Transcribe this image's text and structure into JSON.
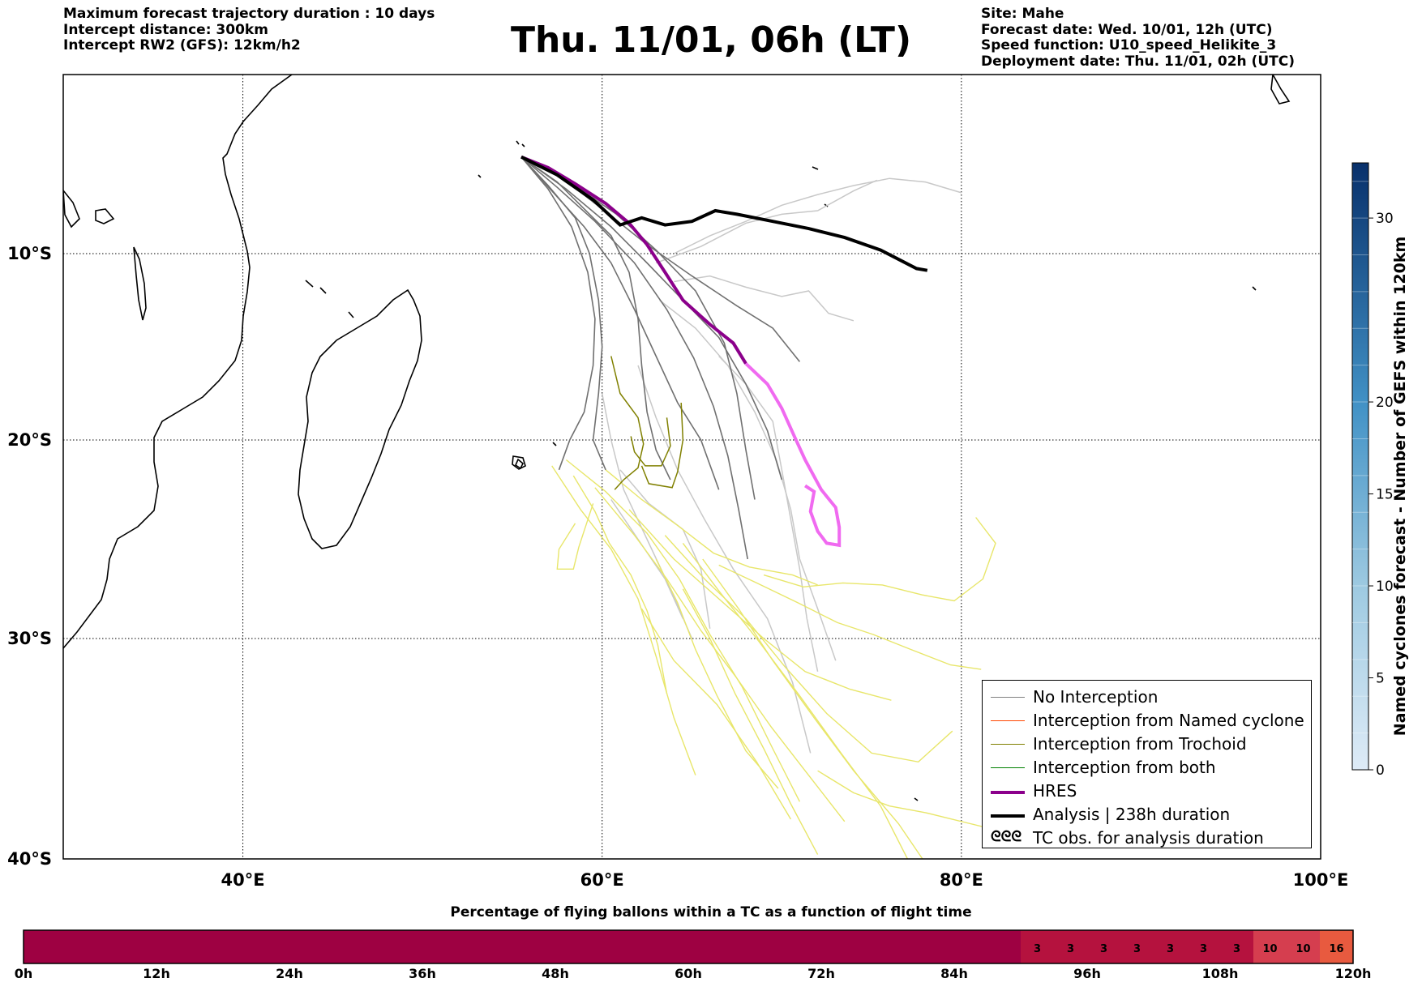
{
  "header": {
    "left": [
      "Maximum forecast trajectory duration : 10 days",
      "Intercept distance: 300km",
      "Intercept RW2 (GFS):  12km/h2"
    ],
    "title": "Thu. 11/01, 06h (LT)",
    "right": [
      "Site: Mahe",
      "Forecast date: Wed. 10/01, 12h (UTC)",
      "Speed function: U10_speed_Helikite_3",
      "Deployment date: Thu. 11/01, 02h (UTC)"
    ]
  },
  "map": {
    "lon_range": [
      30,
      100
    ],
    "lat_range": [
      -40,
      -0.5
    ],
    "lon_ticks": [
      {
        "value": 40,
        "label": "40°E"
      },
      {
        "value": 60,
        "label": "60°E"
      },
      {
        "value": 80,
        "label": "80°E"
      },
      {
        "value": 100,
        "label": "100°E"
      }
    ],
    "lat_ticks": [
      {
        "value": -10,
        "label": "10°S"
      },
      {
        "value": -20,
        "label": "20°S"
      },
      {
        "value": -30,
        "label": "30°S"
      },
      {
        "value": -40,
        "label": "40°S"
      }
    ],
    "launch_site": "Mahe",
    "launch_point": [
      55.5,
      -4.6
    ]
  },
  "legend": [
    {
      "label": "No Interception",
      "color": "#808080",
      "style": "thin"
    },
    {
      "label": "Interception from Named cyclone",
      "color": "#ff4500",
      "style": "thin"
    },
    {
      "label": "Interception from Trochoid",
      "color": "#808000",
      "style": "thin"
    },
    {
      "label": "Interception from both",
      "color": "#008000",
      "style": "thin"
    },
    {
      "label": "HRES",
      "color": "#8b008b",
      "style": "thick"
    },
    {
      "label": "Analysis | 238h duration",
      "color": "#000000",
      "style": "thick"
    },
    {
      "label": "TC obs. for analysis duration",
      "color": "#000000",
      "style": "symbol",
      "symbol": "ᘓᘓᘓ"
    }
  ],
  "colorbar": {
    "title": "Named cyclones forecast - Number of GEFS within 120km",
    "min": 0,
    "max": 33,
    "ticks": [
      0,
      5,
      10,
      15,
      20,
      30
    ]
  },
  "timeline": {
    "title": "Percentage of flying ballons within a TC as a function of flight time",
    "tick_labels": [
      "0h",
      "12h",
      "24h",
      "36h",
      "48h",
      "60h",
      "72h",
      "84h",
      "96h",
      "108h",
      "120h"
    ],
    "cells": [
      {
        "start_h": 0,
        "end_h": 90,
        "value": null
      },
      {
        "start_h": 90,
        "end_h": 93,
        "value": 3
      },
      {
        "start_h": 93,
        "end_h": 96,
        "value": 3
      },
      {
        "start_h": 96,
        "end_h": 99,
        "value": 3
      },
      {
        "start_h": 99,
        "end_h": 102,
        "value": 3
      },
      {
        "start_h": 102,
        "end_h": 105,
        "value": 3
      },
      {
        "start_h": 105,
        "end_h": 108,
        "value": 3
      },
      {
        "start_h": 108,
        "end_h": 111,
        "value": 3
      },
      {
        "start_h": 111,
        "end_h": 114,
        "value": 10
      },
      {
        "start_h": 114,
        "end_h": 117,
        "value": 10
      },
      {
        "start_h": 117,
        "end_h": 120,
        "value": 16
      }
    ]
  },
  "tracks": {
    "hres": [
      [
        55.5,
        -4.6
      ],
      [
        57,
        -5.2
      ],
      [
        58.5,
        -6.1
      ],
      [
        60.2,
        -7.2
      ],
      [
        61.5,
        -8.3
      ],
      [
        62.5,
        -9.5
      ],
      [
        63.5,
        -11
      ],
      [
        64.5,
        -12.5
      ],
      [
        66,
        -13.8
      ],
      [
        67.3,
        -14.8
      ],
      [
        68,
        -15.9
      ],
      [
        69.2,
        -17
      ],
      [
        70,
        -18.3
      ],
      [
        70.7,
        -19.8
      ],
      [
        71.3,
        -21
      ],
      [
        72.2,
        -22.5
      ],
      [
        73,
        -23.4
      ],
      [
        73.2,
        -24.4
      ],
      [
        73.2,
        -25.3
      ],
      [
        72.5,
        -25.2
      ],
      [
        72,
        -24.6
      ],
      [
        71.6,
        -23.6
      ],
      [
        71.8,
        -22.6
      ],
      [
        71.3,
        -22.3
      ]
    ],
    "analysis": [
      [
        55.5,
        -4.6
      ],
      [
        57.5,
        -5.6
      ],
      [
        59.5,
        -7
      ],
      [
        61,
        -8.4
      ],
      [
        62.2,
        -8
      ],
      [
        63.5,
        -8.4
      ],
      [
        65,
        -8.2
      ],
      [
        66.3,
        -7.6
      ],
      [
        67.5,
        -7.8
      ],
      [
        69.5,
        -8.2
      ],
      [
        71.5,
        -8.6
      ],
      [
        73.5,
        -9.1
      ],
      [
        75.5,
        -9.8
      ],
      [
        77.5,
        -10.8
      ],
      [
        78.1,
        -10.9
      ]
    ],
    "gray": [
      [
        [
          55.5,
          -4.6
        ],
        [
          57.5,
          -6
        ],
        [
          59,
          -7.5
        ],
        [
          60.5,
          -9
        ],
        [
          61.5,
          -11
        ],
        [
          62,
          -13.5
        ],
        [
          62.2,
          -16
        ],
        [
          62.5,
          -18.5
        ],
        [
          63,
          -20.5
        ],
        [
          63.8,
          -22
        ]
      ],
      [
        [
          55.5,
          -4.6
        ],
        [
          57,
          -6.2
        ],
        [
          58.5,
          -8
        ],
        [
          59.3,
          -10
        ],
        [
          59.8,
          -12.5
        ],
        [
          60,
          -15
        ],
        [
          59.8,
          -17.5
        ],
        [
          59.5,
          -20
        ],
        [
          60.2,
          -21.5
        ]
      ],
      [
        [
          55.5,
          -4.6
        ],
        [
          57.2,
          -6.5
        ],
        [
          59,
          -8.5
        ],
        [
          60.5,
          -10.5
        ],
        [
          61.8,
          -13
        ],
        [
          63,
          -15.5
        ],
        [
          64.2,
          -18
        ],
        [
          65.5,
          -20
        ],
        [
          66.5,
          -22.5
        ]
      ],
      [
        [
          55.5,
          -4.6
        ],
        [
          58,
          -6.4
        ],
        [
          60.5,
          -8.5
        ],
        [
          62.5,
          -10.5
        ],
        [
          64.5,
          -12.5
        ],
        [
          66.5,
          -14.5
        ],
        [
          68,
          -17
        ],
        [
          69.2,
          -19.5
        ],
        [
          70,
          -22
        ]
      ],
      [
        [
          55.5,
          -4.6
        ],
        [
          57.8,
          -5.8
        ],
        [
          60,
          -7.5
        ],
        [
          62.5,
          -9.5
        ],
        [
          65,
          -11.2
        ],
        [
          67.5,
          -12.8
        ],
        [
          69.5,
          -14
        ],
        [
          71,
          -15.8
        ]
      ],
      [
        [
          55.5,
          -4.6
        ],
        [
          58.2,
          -6
        ],
        [
          60.8,
          -7.8
        ],
        [
          63,
          -9.8
        ],
        [
          65.2,
          -12
        ],
        [
          66.8,
          -14.8
        ],
        [
          67.5,
          -17.5
        ],
        [
          68,
          -20.5
        ],
        [
          68.5,
          -23
        ]
      ],
      [
        [
          55.5,
          -4.6
        ],
        [
          57,
          -6.4
        ],
        [
          58.3,
          -8.5
        ],
        [
          59.2,
          -11
        ],
        [
          59.6,
          -13.5
        ],
        [
          59.5,
          -16
        ],
        [
          59,
          -18.5
        ],
        [
          58.2,
          -20
        ],
        [
          57.6,
          -21.5
        ]
      ],
      [
        [
          55.5,
          -4.6
        ],
        [
          57.5,
          -6.3
        ],
        [
          59.6,
          -8.2
        ],
        [
          61.8,
          -10.5
        ],
        [
          63.6,
          -13
        ],
        [
          65.1,
          -15.6
        ],
        [
          66.2,
          -18.2
        ],
        [
          67,
          -20.8
        ],
        [
          67.6,
          -23.5
        ],
        [
          68.1,
          -26
        ]
      ]
    ],
    "lightgray": [
      [
        [
          64,
          -10
        ],
        [
          66,
          -9
        ],
        [
          68,
          -8.2
        ],
        [
          70,
          -7.3
        ],
        [
          72,
          -6.7
        ],
        [
          74,
          -6.2
        ],
        [
          76,
          -5.8
        ],
        [
          78,
          -6
        ],
        [
          80,
          -6.6
        ]
      ],
      [
        [
          63,
          -10.5
        ],
        [
          65.5,
          -9.6
        ],
        [
          68,
          -8.3
        ],
        [
          70,
          -7.8
        ],
        [
          72,
          -7.6
        ],
        [
          74,
          -6.5
        ],
        [
          75.3,
          -5.9
        ]
      ],
      [
        [
          64,
          -11.5
        ],
        [
          66,
          -11.2
        ],
        [
          68,
          -11.8
        ],
        [
          70,
          -12.3
        ],
        [
          71.5,
          -12
        ],
        [
          72.6,
          -13.2
        ],
        [
          74,
          -13.6
        ]
      ],
      [
        [
          63.2,
          -12.5
        ],
        [
          65.2,
          -14
        ],
        [
          67,
          -16
        ],
        [
          68.5,
          -18.5
        ],
        [
          69.7,
          -21
        ],
        [
          70.5,
          -23.5
        ],
        [
          71,
          -26
        ],
        [
          72,
          -28.5
        ],
        [
          73,
          -31
        ]
      ],
      [
        [
          62,
          -16
        ],
        [
          63,
          -18.8
        ],
        [
          64.2,
          -21.5
        ],
        [
          65.7,
          -24
        ],
        [
          67.3,
          -26.5
        ],
        [
          69.2,
          -29
        ],
        [
          70.6,
          -32
        ],
        [
          71.6,
          -35.2
        ]
      ],
      [
        [
          60,
          -17.5
        ],
        [
          60.5,
          -20
        ],
        [
          61.2,
          -22.5
        ],
        [
          62.5,
          -25
        ],
        [
          63.8,
          -27.5
        ],
        [
          65,
          -30
        ]
      ],
      [
        [
          60.5,
          -23
        ],
        [
          62,
          -25
        ],
        [
          63.5,
          -27
        ],
        [
          64.5,
          -29
        ]
      ],
      [
        [
          66.5,
          -15.5
        ],
        [
          68,
          -17
        ],
        [
          69.5,
          -19
        ],
        [
          70,
          -21.5
        ],
        [
          70.5,
          -24
        ],
        [
          71,
          -26.5
        ],
        [
          71.4,
          -29
        ],
        [
          72,
          -31.5
        ]
      ],
      [
        [
          61,
          -21.5
        ],
        [
          62.6,
          -23.2
        ],
        [
          64.5,
          -24.5
        ],
        [
          65.5,
          -26.5
        ],
        [
          66,
          -29.5
        ]
      ]
    ],
    "yellow": [
      [
        [
          57.2,
          -21.3
        ],
        [
          58.8,
          -23.5
        ],
        [
          60.5,
          -25.5
        ],
        [
          62,
          -28
        ],
        [
          63,
          -30.8
        ],
        [
          64,
          -33.6
        ],
        [
          65.2,
          -36.2
        ]
      ],
      [
        [
          58,
          -21
        ],
        [
          60.2,
          -22.6
        ],
        [
          62.5,
          -24.7
        ],
        [
          64.3,
          -27
        ],
        [
          66,
          -29.8
        ],
        [
          67.8,
          -32.2
        ],
        [
          69.5,
          -35
        ],
        [
          71,
          -37.4
        ]
      ],
      [
        [
          59.6,
          -22.4
        ],
        [
          61.8,
          -24.8
        ],
        [
          63.6,
          -27
        ],
        [
          65.5,
          -29.6
        ],
        [
          67.5,
          -31.8
        ],
        [
          69.4,
          -34
        ],
        [
          71.3,
          -36
        ],
        [
          73.5,
          -38.3
        ]
      ],
      [
        [
          61.5,
          -23.5
        ],
        [
          64,
          -26
        ],
        [
          66.5,
          -28
        ],
        [
          69,
          -30
        ],
        [
          71.3,
          -31.5
        ],
        [
          73.8,
          -32.3
        ],
        [
          76.1,
          -32.8
        ]
      ],
      [
        [
          63.5,
          -24.8
        ],
        [
          65.7,
          -27
        ],
        [
          68,
          -29
        ],
        [
          70.2,
          -31.3
        ],
        [
          72.5,
          -33.4
        ],
        [
          75,
          -35.2
        ],
        [
          77.6,
          -35.6
        ],
        [
          79.5,
          -34.2
        ]
      ],
      [
        [
          64.5,
          -25.2
        ],
        [
          66.5,
          -27.6
        ],
        [
          68.6,
          -30
        ],
        [
          71,
          -32.6
        ],
        [
          73.3,
          -35.2
        ],
        [
          75.5,
          -37.6
        ],
        [
          77,
          -40
        ]
      ],
      [
        [
          65.6,
          -26
        ],
        [
          67.6,
          -28.5
        ],
        [
          69.5,
          -31
        ],
        [
          71.8,
          -33.6
        ],
        [
          74,
          -36
        ],
        [
          76.5,
          -38.4
        ],
        [
          78.5,
          -40.8
        ]
      ],
      [
        [
          66.5,
          -26.3
        ],
        [
          68.6,
          -27.2
        ],
        [
          70.9,
          -28.2
        ],
        [
          73.1,
          -29.2
        ],
        [
          75.1,
          -29.8
        ],
        [
          77.2,
          -30.5
        ],
        [
          79.4,
          -31.2
        ],
        [
          81.1,
          -31.4
        ]
      ],
      [
        [
          69,
          -26.8
        ],
        [
          71.2,
          -27.4
        ],
        [
          73.4,
          -27.2
        ],
        [
          75.6,
          -27.3
        ],
        [
          77.8,
          -27.8
        ],
        [
          79.6,
          -28.1
        ],
        [
          81.2,
          -27
        ],
        [
          81.9,
          -25.2
        ],
        [
          80.8,
          -23.9
        ]
      ],
      [
        [
          58.4,
          -21.8
        ],
        [
          59.6,
          -23.6
        ],
        [
          60.4,
          -25.2
        ],
        [
          61.6,
          -26.8
        ],
        [
          62.5,
          -28.6
        ],
        [
          63.1,
          -30.3
        ],
        [
          63.6,
          -32.5
        ]
      ],
      [
        [
          63,
          -26
        ],
        [
          64.2,
          -28.2
        ],
        [
          65.2,
          -30.5
        ],
        [
          66.4,
          -32.6
        ],
        [
          68,
          -35.1
        ],
        [
          69.8,
          -36.8
        ]
      ],
      [
        [
          60.2,
          -21.5
        ],
        [
          62.2,
          -23
        ],
        [
          64.2,
          -24.3
        ],
        [
          66.2,
          -25.7
        ],
        [
          68.2,
          -26.4
        ],
        [
          70.6,
          -26.8
        ],
        [
          72,
          -27.3
        ]
      ],
      [
        [
          59.5,
          -23.2
        ],
        [
          58.7,
          -25.4
        ],
        [
          58.4,
          -26.5
        ],
        [
          57.5,
          -26.5
        ],
        [
          57.6,
          -25.5
        ],
        [
          58.5,
          -24.2
        ]
      ],
      [
        [
          64.5,
          -27.5
        ],
        [
          66,
          -30
        ],
        [
          67.4,
          -32.5
        ],
        [
          69,
          -35
        ],
        [
          70.5,
          -37.5
        ],
        [
          72,
          -39.8
        ]
      ],
      [
        [
          62.2,
          -28.5
        ],
        [
          64,
          -31
        ],
        [
          66.4,
          -33
        ],
        [
          68.6,
          -35.6
        ],
        [
          70.5,
          -38.2
        ]
      ],
      [
        [
          72,
          -36
        ],
        [
          74,
          -37
        ],
        [
          76,
          -37.6
        ],
        [
          78,
          -37.9
        ],
        [
          80.5,
          -38.4
        ],
        [
          82.5,
          -38.8
        ]
      ]
    ],
    "olive": [
      [
        [
          60.5,
          -15.5
        ],
        [
          61,
          -17.5
        ],
        [
          62,
          -18.8
        ],
        [
          62.3,
          -20.2
        ],
        [
          62,
          -21.4
        ],
        [
          61.2,
          -22
        ],
        [
          60.7,
          -22.5
        ]
      ],
      [
        [
          63.6,
          -18.8
        ],
        [
          63.8,
          -20.3
        ],
        [
          63.3,
          -21.3
        ],
        [
          62.4,
          -21.3
        ],
        [
          61.8,
          -20.6
        ],
        [
          61.6,
          -19.8
        ]
      ],
      [
        [
          64.4,
          -18
        ],
        [
          64.5,
          -20
        ],
        [
          64.2,
          -21.6
        ],
        [
          63.9,
          -22.4
        ],
        [
          62.6,
          -22.2
        ],
        [
          62.2,
          -21.3
        ]
      ]
    ]
  }
}
